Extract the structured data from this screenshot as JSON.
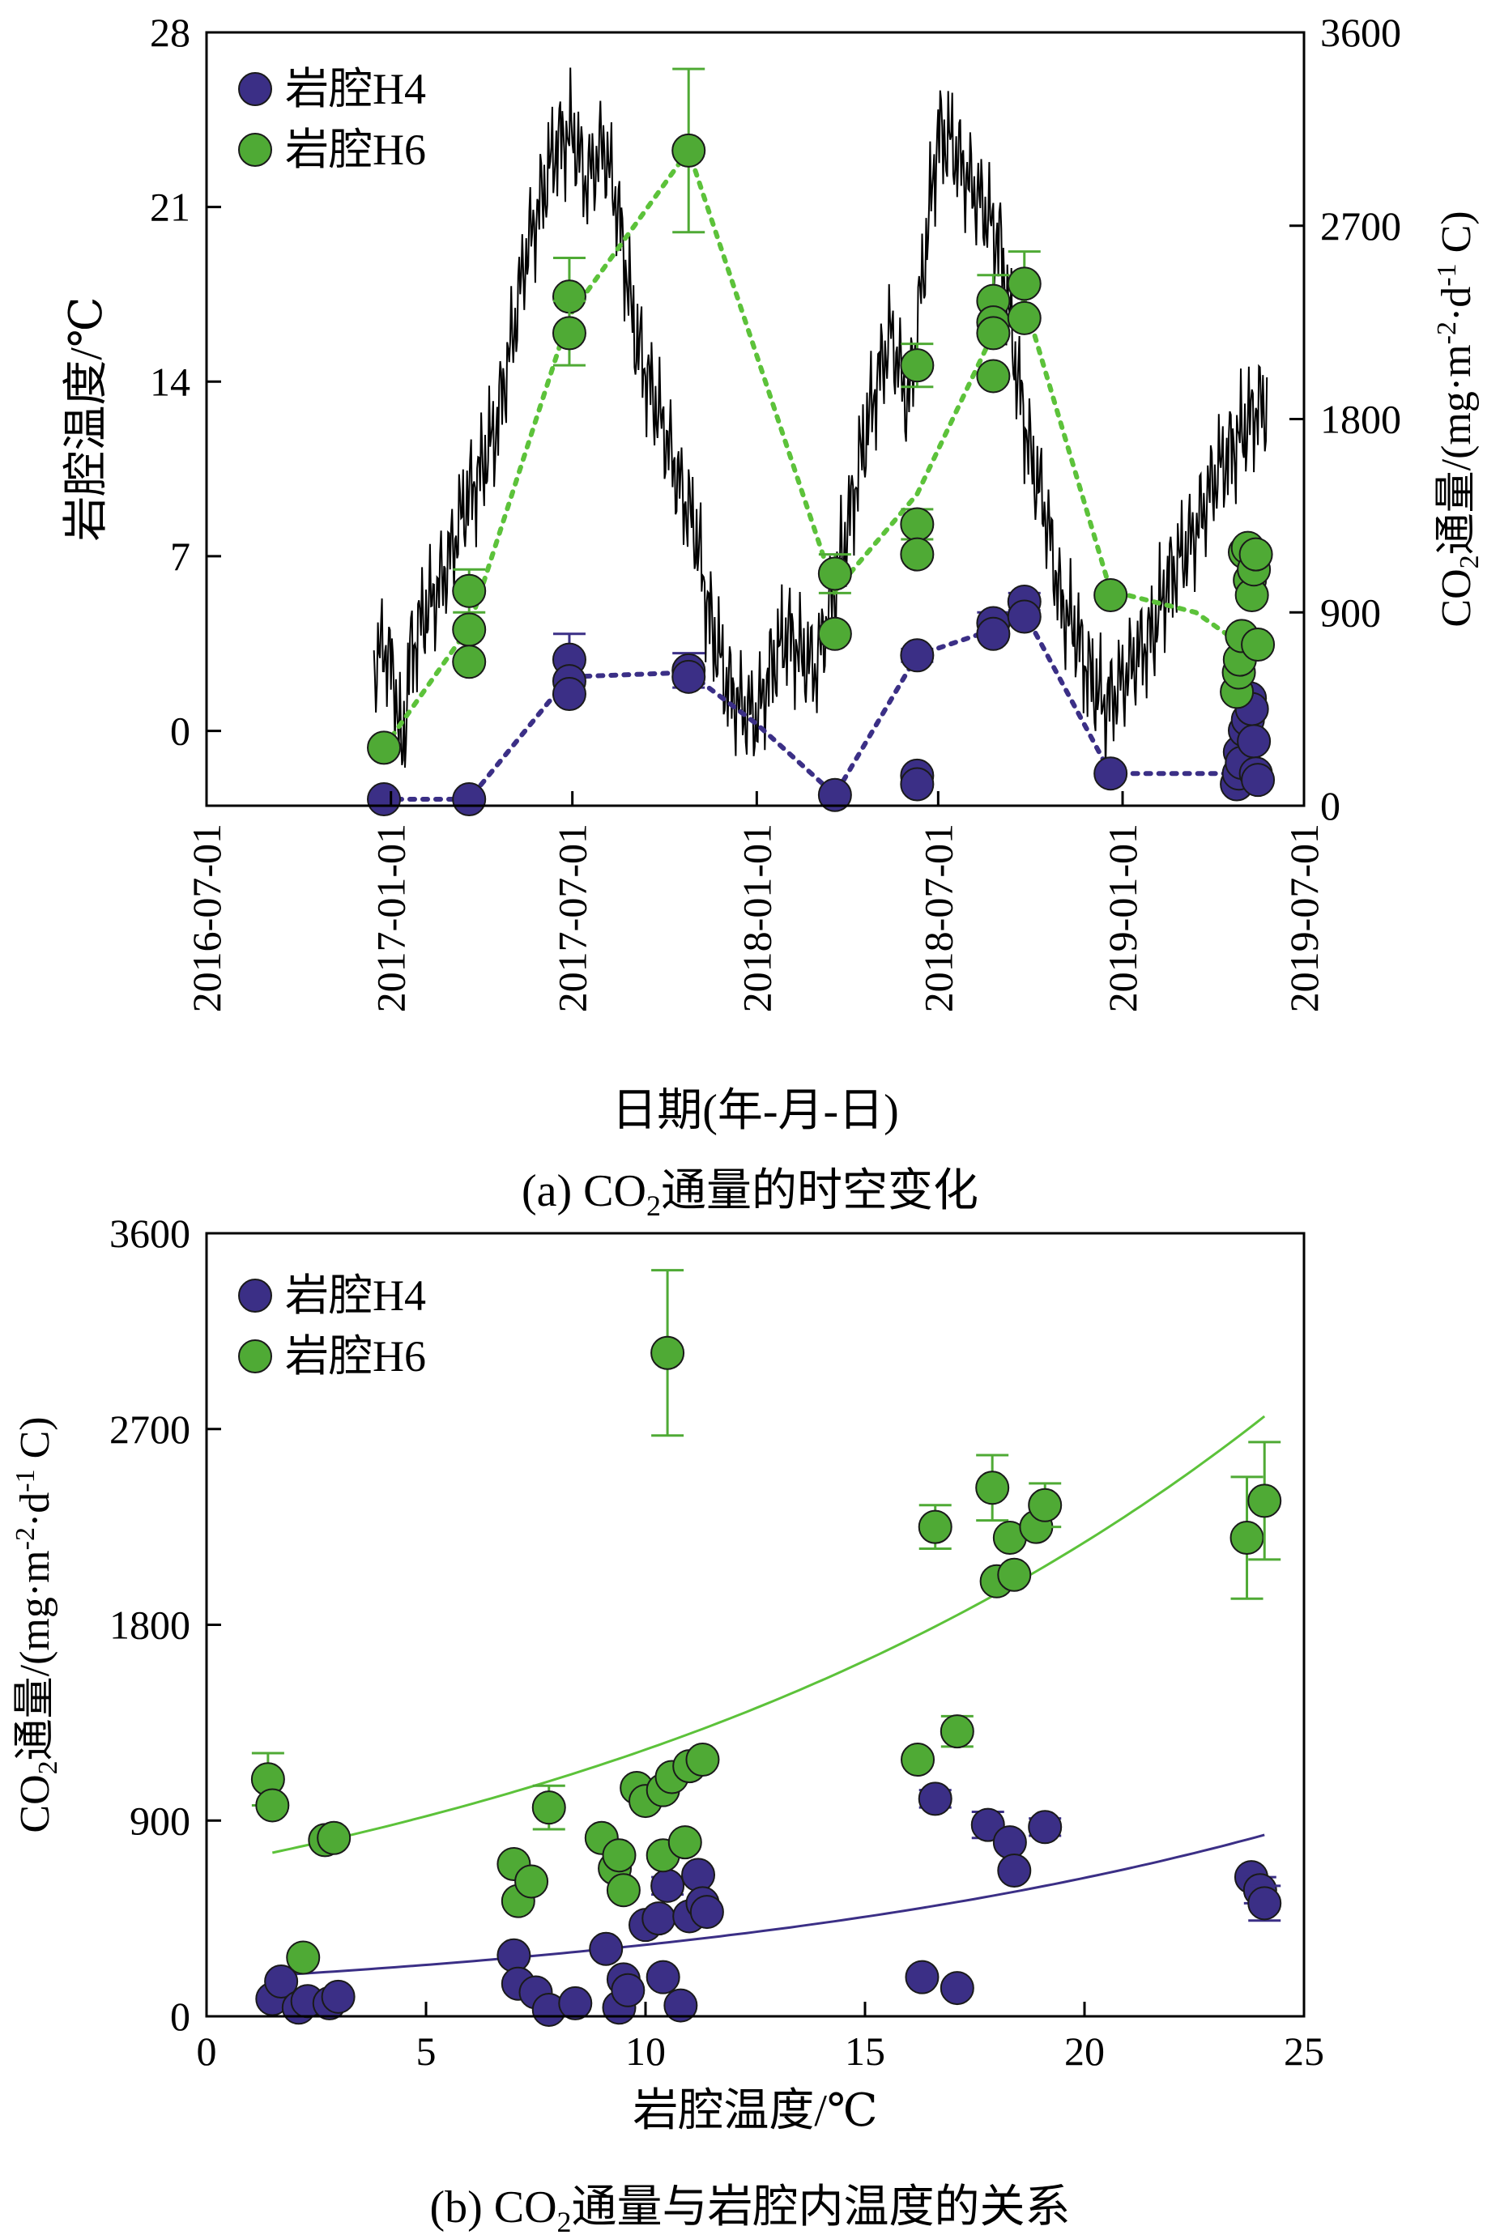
{
  "colors": {
    "h4": "#3b2f86",
    "h6": "#4faa35",
    "h6_line": "#5cc23a",
    "temp_line": "#000000"
  },
  "chart_data": [
    {
      "type": "scatter",
      "caption_pre": "(a) CO",
      "caption_sub": "2",
      "caption_post": "通量的时空变化",
      "xlabel": "日期(年-月-日)",
      "ylabel": "岩腔温度/℃",
      "y2label_pre": "CO",
      "y2label_sub": "2",
      "y2label_post": "通量/(mg·m",
      "y2label_sup1": "-2",
      "y2label_mid": "·d",
      "y2label_sup2": "-1",
      "y2label_end": " C)",
      "xlim": [
        "2016-07-01",
        "2019-07-01"
      ],
      "xticks": [
        "2016-07-01",
        "2017-01-01",
        "2017-07-01",
        "2018-01-01",
        "2018-07-01",
        "2019-01-01",
        "2019-07-01"
      ],
      "ylim": [
        -3,
        28
      ],
      "yticks": [
        0,
        7,
        14,
        21,
        28
      ],
      "y2lim": [
        0,
        3600
      ],
      "y2ticks": [
        0,
        900,
        1800,
        2700,
        3600
      ],
      "legend": {
        "position": "top-left",
        "items": [
          {
            "name": "岩腔H4",
            "color_key": "h4"
          },
          {
            "name": "岩腔H6",
            "color_key": "h6"
          }
        ]
      },
      "temperature_anchors": [
        [
          "2016-12-15",
          2.5
        ],
        [
          "2016-12-25",
          3.5
        ],
        [
          "2017-01-05",
          2.0
        ],
        [
          "2017-01-12",
          -1.2
        ],
        [
          "2017-01-20",
          3.0
        ],
        [
          "2017-02-01",
          4.5
        ],
        [
          "2017-02-15",
          5.5
        ],
        [
          "2017-03-01",
          7.0
        ],
        [
          "2017-03-15",
          9.0
        ],
        [
          "2017-04-01",
          10.5
        ],
        [
          "2017-04-15",
          12.0
        ],
        [
          "2017-05-01",
          15.5
        ],
        [
          "2017-05-15",
          19.0
        ],
        [
          "2017-06-01",
          21.5
        ],
        [
          "2017-06-15",
          23.5
        ],
        [
          "2017-07-01",
          24.0
        ],
        [
          "2017-07-15",
          22.0
        ],
        [
          "2017-08-01",
          23.5
        ],
        [
          "2017-08-15",
          21.0
        ],
        [
          "2017-09-01",
          16.0
        ],
        [
          "2017-09-15",
          14.0
        ],
        [
          "2017-10-01",
          12.0
        ],
        [
          "2017-10-15",
          10.0
        ],
        [
          "2017-11-01",
          8.0
        ],
        [
          "2017-11-15",
          4.5
        ],
        [
          "2017-12-01",
          2.0
        ],
        [
          "2017-12-15",
          1.0
        ],
        [
          "2018-01-01",
          0.5
        ],
        [
          "2018-01-15",
          2.5
        ],
        [
          "2018-02-01",
          4.0
        ],
        [
          "2018-02-15",
          3.0
        ],
        [
          "2018-03-01",
          2.5
        ],
        [
          "2018-03-15",
          5.0
        ],
        [
          "2018-04-01",
          8.0
        ],
        [
          "2018-04-15",
          11.0
        ],
        [
          "2018-05-01",
          14.0
        ],
        [
          "2018-05-15",
          16.0
        ],
        [
          "2018-06-01",
          13.0
        ],
        [
          "2018-06-15",
          18.0
        ],
        [
          "2018-07-01",
          24.0
        ],
        [
          "2018-07-15",
          23.5
        ],
        [
          "2018-08-01",
          22.0
        ],
        [
          "2018-08-15",
          21.0
        ],
        [
          "2018-09-01",
          19.5
        ],
        [
          "2018-09-15",
          15.0
        ],
        [
          "2018-10-01",
          11.0
        ],
        [
          "2018-10-15",
          9.0
        ],
        [
          "2018-11-01",
          5.0
        ],
        [
          "2018-11-15",
          4.0
        ],
        [
          "2018-12-01",
          2.0
        ],
        [
          "2018-12-15",
          1.0
        ],
        [
          "2019-01-01",
          2.0
        ],
        [
          "2019-01-15",
          3.0
        ],
        [
          "2019-02-01",
          4.0
        ],
        [
          "2019-02-15",
          6.0
        ],
        [
          "2019-03-01",
          7.0
        ],
        [
          "2019-03-15",
          8.0
        ],
        [
          "2019-04-01",
          10.0
        ],
        [
          "2019-04-15",
          11.0
        ],
        [
          "2019-05-01",
          12.0
        ],
        [
          "2019-05-15",
          13.0
        ],
        [
          "2019-05-25",
          13.0
        ]
      ],
      "series": [
        {
          "name": "岩腔H4",
          "color_key": "h4",
          "points": [
            {
              "x": "2016-12-25",
              "y": 30
            },
            {
              "x": "2017-03-20",
              "y": 30
            },
            {
              "x": "2017-06-28",
              "y": 680,
              "err": 120
            },
            {
              "x": "2017-06-28",
              "y": 580
            },
            {
              "x": "2017-06-28",
              "y": 520
            },
            {
              "x": "2017-10-25",
              "y": 630,
              "err": 80
            },
            {
              "x": "2017-10-25",
              "y": 600
            },
            {
              "x": "2018-03-20",
              "y": 50
            },
            {
              "x": "2018-06-10",
              "y": 700,
              "err": 30
            },
            {
              "x": "2018-06-10",
              "y": 140
            },
            {
              "x": "2018-06-10",
              "y": 100
            },
            {
              "x": "2018-08-25",
              "y": 850,
              "err": 50
            },
            {
              "x": "2018-08-25",
              "y": 800
            },
            {
              "x": "2018-09-25",
              "y": 950,
              "err": 40
            },
            {
              "x": "2018-09-25",
              "y": 880
            },
            {
              "x": "2018-12-20",
              "y": 150
            },
            {
              "x": "2019-04-25",
              "y": 100
            },
            {
              "x": "2019-04-27",
              "y": 150
            },
            {
              "x": "2019-04-28",
              "y": 250
            },
            {
              "x": "2019-04-30",
              "y": 200
            },
            {
              "x": "2019-05-03",
              "y": 350
            },
            {
              "x": "2019-05-06",
              "y": 400
            },
            {
              "x": "2019-05-08",
              "y": 500
            },
            {
              "x": "2019-05-10",
              "y": 450
            },
            {
              "x": "2019-05-12",
              "y": 300
            },
            {
              "x": "2019-05-14",
              "y": 150
            },
            {
              "x": "2019-05-16",
              "y": 120
            }
          ]
        },
        {
          "name": "岩腔H6",
          "color_key": "h6",
          "points": [
            {
              "x": "2016-12-25",
              "y": 270
            },
            {
              "x": "2017-03-20",
              "y": 1000,
              "err": 100
            },
            {
              "x": "2017-03-20",
              "y": 820
            },
            {
              "x": "2017-03-20",
              "y": 670
            },
            {
              "x": "2017-06-28",
              "y": 2370,
              "err": 180
            },
            {
              "x": "2017-06-28",
              "y": 2200,
              "err": 150
            },
            {
              "x": "2017-10-25",
              "y": 3050,
              "err": 380
            },
            {
              "x": "2018-03-20",
              "y": 1080,
              "err": 90
            },
            {
              "x": "2018-03-20",
              "y": 800
            },
            {
              "x": "2018-06-10",
              "y": 2050,
              "err": 100
            },
            {
              "x": "2018-06-10",
              "y": 1310,
              "err": 70
            },
            {
              "x": "2018-06-10",
              "y": 1170
            },
            {
              "x": "2018-08-25",
              "y": 2350,
              "err": 120
            },
            {
              "x": "2018-08-25",
              "y": 2250
            },
            {
              "x": "2018-08-25",
              "y": 2200
            },
            {
              "x": "2018-08-25",
              "y": 2000
            },
            {
              "x": "2018-09-25",
              "y": 2430,
              "err": 150
            },
            {
              "x": "2018-09-25",
              "y": 2270
            },
            {
              "x": "2018-12-20",
              "y": 980
            },
            {
              "x": "2019-04-25",
              "y": 530
            },
            {
              "x": "2019-04-27",
              "y": 620
            },
            {
              "x": "2019-04-28",
              "y": 680
            },
            {
              "x": "2019-04-30",
              "y": 790
            },
            {
              "x": "2019-05-03",
              "y": 1180
            },
            {
              "x": "2019-05-06",
              "y": 1200
            },
            {
              "x": "2019-05-08",
              "y": 1050
            },
            {
              "x": "2019-05-10",
              "y": 980
            },
            {
              "x": "2019-05-12",
              "y": 1100
            },
            {
              "x": "2019-05-14",
              "y": 1170
            },
            {
              "x": "2019-05-16",
              "y": 750
            }
          ]
        }
      ],
      "mean_lines": [
        {
          "color_key": "h4",
          "points": [
            [
              "2016-12-25",
              30
            ],
            [
              "2017-03-20",
              30
            ],
            [
              "2017-06-28",
              600
            ],
            [
              "2017-10-25",
              620
            ],
            [
              "2018-01-01",
              380
            ],
            [
              "2018-03-20",
              50
            ],
            [
              "2018-06-10",
              700
            ],
            [
              "2018-08-25",
              820
            ],
            [
              "2018-09-25",
              900
            ],
            [
              "2018-12-20",
              150
            ],
            [
              "2019-05-15",
              150
            ]
          ]
        },
        {
          "color_key": "h6",
          "points": [
            [
              "2016-12-25",
              270
            ],
            [
              "2017-03-20",
              830
            ],
            [
              "2017-06-28",
              2280
            ],
            [
              "2017-10-25",
              3050
            ],
            [
              "2018-03-20",
              1000
            ],
            [
              "2018-06-10",
              1450
            ],
            [
              "2018-08-25",
              2200
            ],
            [
              "2018-09-25",
              2350
            ],
            [
              "2018-12-20",
              1000
            ],
            [
              "2019-03-15",
              900
            ],
            [
              "2019-05-15",
              700
            ]
          ]
        }
      ]
    },
    {
      "type": "scatter",
      "caption_pre": "(b) CO",
      "caption_sub": "2",
      "caption_post": "通量与岩腔内温度的关系",
      "xlabel": "岩腔温度/℃",
      "ylabel_pre": "CO",
      "ylabel_sub": "2",
      "ylabel_post": "通量/(mg·m",
      "ylabel_sup1": "-2",
      "ylabel_mid": "·d",
      "ylabel_sup2": "-1",
      "ylabel_end": " C)",
      "xlim": [
        0,
        25
      ],
      "xticks": [
        0,
        5,
        10,
        15,
        20,
        25
      ],
      "ylim": [
        0,
        3600
      ],
      "yticks": [
        0,
        900,
        1800,
        2700,
        3600
      ],
      "legend": {
        "position": "top-left",
        "items": [
          {
            "name": "岩腔H4",
            "color_key": "h4"
          },
          {
            "name": "岩腔H6",
            "color_key": "h6"
          }
        ]
      },
      "series": [
        {
          "name": "岩腔H4",
          "color_key": "h4",
          "points": [
            {
              "x": 1.5,
              "y": 80
            },
            {
              "x": 1.7,
              "y": 160
            },
            {
              "x": 2.1,
              "y": 40
            },
            {
              "x": 2.3,
              "y": 70
            },
            {
              "x": 2.8,
              "y": 60
            },
            {
              "x": 3.0,
              "y": 90
            },
            {
              "x": 7.0,
              "y": 280
            },
            {
              "x": 7.1,
              "y": 150
            },
            {
              "x": 7.5,
              "y": 110
            },
            {
              "x": 7.8,
              "y": 30
            },
            {
              "x": 8.4,
              "y": 60
            },
            {
              "x": 9.1,
              "y": 310
            },
            {
              "x": 9.4,
              "y": 40
            },
            {
              "x": 9.5,
              "y": 170
            },
            {
              "x": 9.6,
              "y": 120
            },
            {
              "x": 10.0,
              "y": 420
            },
            {
              "x": 10.3,
              "y": 450
            },
            {
              "x": 10.5,
              "y": 600,
              "err": 40
            },
            {
              "x": 10.4,
              "y": 180
            },
            {
              "x": 10.8,
              "y": 50
            },
            {
              "x": 11.0,
              "y": 460
            },
            {
              "x": 11.2,
              "y": 650
            },
            {
              "x": 11.3,
              "y": 520
            },
            {
              "x": 11.4,
              "y": 480
            },
            {
              "x": 16.3,
              "y": 180
            },
            {
              "x": 16.6,
              "y": 1000,
              "err": 40
            },
            {
              "x": 17.1,
              "y": 130
            },
            {
              "x": 17.8,
              "y": 880,
              "err": 60
            },
            {
              "x": 18.3,
              "y": 800
            },
            {
              "x": 18.4,
              "y": 670
            },
            {
              "x": 19.1,
              "y": 870,
              "err": 40
            },
            {
              "x": 23.8,
              "y": 640
            },
            {
              "x": 24.0,
              "y": 580,
              "err": 60
            },
            {
              "x": 24.1,
              "y": 520,
              "err": 80
            }
          ]
        },
        {
          "name": "岩腔H6",
          "color_key": "h6",
          "points": [
            {
              "x": 1.4,
              "y": 1090,
              "err": 120
            },
            {
              "x": 1.5,
              "y": 970
            },
            {
              "x": 2.2,
              "y": 270
            },
            {
              "x": 2.7,
              "y": 810
            },
            {
              "x": 2.9,
              "y": 820
            },
            {
              "x": 7.0,
              "y": 700
            },
            {
              "x": 7.1,
              "y": 530
            },
            {
              "x": 7.4,
              "y": 620
            },
            {
              "x": 7.8,
              "y": 960,
              "err": 100
            },
            {
              "x": 9.0,
              "y": 820
            },
            {
              "x": 9.3,
              "y": 680
            },
            {
              "x": 9.4,
              "y": 740
            },
            {
              "x": 9.5,
              "y": 580
            },
            {
              "x": 9.8,
              "y": 1050
            },
            {
              "x": 10.0,
              "y": 990
            },
            {
              "x": 10.4,
              "y": 1040
            },
            {
              "x": 10.4,
              "y": 740
            },
            {
              "x": 10.5,
              "y": 3050,
              "err": 380
            },
            {
              "x": 10.6,
              "y": 1100
            },
            {
              "x": 10.9,
              "y": 800
            },
            {
              "x": 11.0,
              "y": 1150
            },
            {
              "x": 11.3,
              "y": 1180
            },
            {
              "x": 16.2,
              "y": 1180
            },
            {
              "x": 16.6,
              "y": 2250,
              "err": 100
            },
            {
              "x": 17.1,
              "y": 1310,
              "err": 70
            },
            {
              "x": 17.9,
              "y": 2430,
              "err": 150
            },
            {
              "x": 18.0,
              "y": 2000
            },
            {
              "x": 18.3,
              "y": 2200
            },
            {
              "x": 18.4,
              "y": 2030
            },
            {
              "x": 18.9,
              "y": 2250
            },
            {
              "x": 19.1,
              "y": 2350,
              "err": 100
            },
            {
              "x": 23.7,
              "y": 2200,
              "err": 280
            },
            {
              "x": 24.1,
              "y": 2370,
              "err": 270
            }
          ]
        }
      ],
      "fits": [
        {
          "color_key": "h4",
          "form": "exponential",
          "x_range": [
            1.5,
            24.2
          ],
          "a": 170,
          "b": 0.066
        },
        {
          "color_key": "h6",
          "form": "exponential",
          "x_range": [
            1.5,
            24.2
          ],
          "a": 690,
          "b": 0.0575
        }
      ]
    }
  ]
}
